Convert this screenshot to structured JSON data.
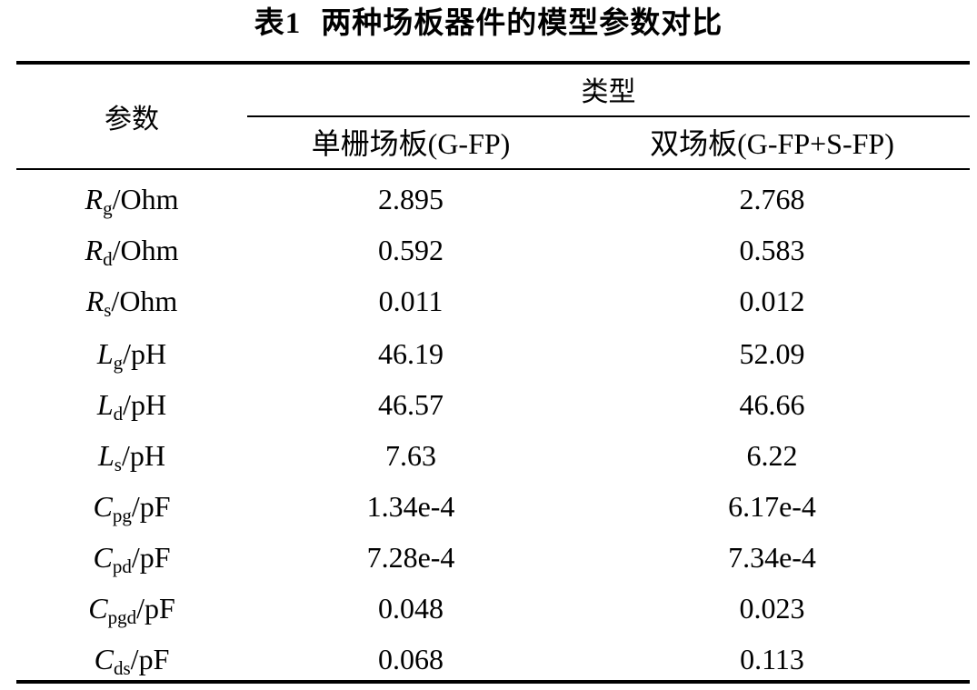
{
  "title": {
    "number": "表1",
    "text": "两种场板器件的模型参数对比"
  },
  "header": {
    "param_label": "参数",
    "type_label": "类型",
    "col1": "单栅场板(G-FP)",
    "col2": "双场板(G-FP+S-FP)"
  },
  "rows": [
    {
      "sym": "R",
      "sub": "g",
      "unit": "/Ohm",
      "v1": "2.895",
      "v2": "2.768"
    },
    {
      "sym": "R",
      "sub": "d",
      "unit": "/Ohm",
      "v1": "0.592",
      "v2": "0.583"
    },
    {
      "sym": "R",
      "sub": "s",
      "unit": "/Ohm",
      "v1": "0.011",
      "v2": "0.012"
    },
    {
      "sym": "L",
      "sub": "g",
      "unit": "/pH",
      "v1": "46.19",
      "v2": "52.09"
    },
    {
      "sym": "L",
      "sub": "d",
      "unit": "/pH",
      "v1": "46.57",
      "v2": "46.66"
    },
    {
      "sym": "L",
      "sub": "s",
      "unit": "/pH",
      "v1": "7.63",
      "v2": "6.22"
    },
    {
      "sym": "C",
      "sub": "pg",
      "unit": "/pF",
      "v1": "1.34e-4",
      "v2": "6.17e-4"
    },
    {
      "sym": "C",
      "sub": "pd",
      "unit": "/pF",
      "v1": "7.28e-4",
      "v2": "7.34e-4"
    },
    {
      "sym": "C",
      "sub": "pgd",
      "unit": "/pF",
      "v1": "0.048",
      "v2": "0.023"
    },
    {
      "sym": "C",
      "sub": "ds",
      "unit": "/pF",
      "v1": "0.068",
      "v2": "0.113"
    }
  ]
}
